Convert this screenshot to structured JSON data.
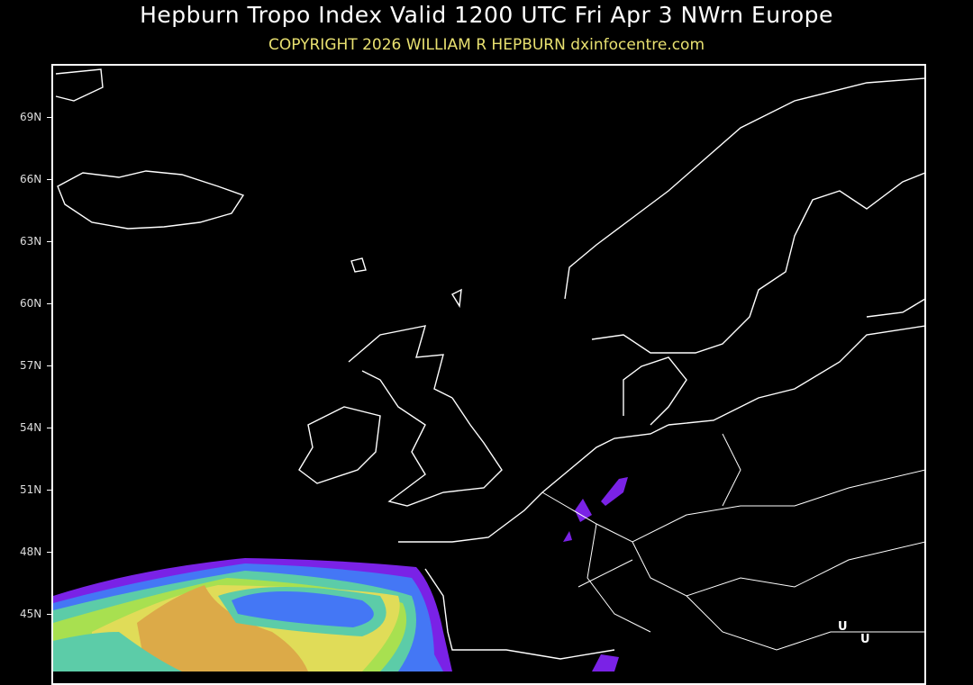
{
  "header": {
    "title": "Hepburn Tropo Index Valid 1200 UTC Fri Apr 3 NWrn Europe",
    "copyright": "COPYRIGHT 2026   WILLIAM R HEPBURN   dxinfocentre.com"
  },
  "map": {
    "region": "NW Europe",
    "latitude_labels": [
      "69N",
      "66N",
      "63N",
      "60N",
      "57N",
      "54N",
      "51N",
      "48N",
      "45N"
    ],
    "markers": [
      "U",
      "U"
    ],
    "colors": {
      "background": "#000000",
      "coastline": "#ffffff",
      "index_purple": "#7a22e6",
      "index_blue": "#4477f5",
      "index_teal": "#5ccca8",
      "index_lime": "#a8e050",
      "index_yellow": "#e0dc58",
      "index_orange": "#dcaa48"
    }
  }
}
